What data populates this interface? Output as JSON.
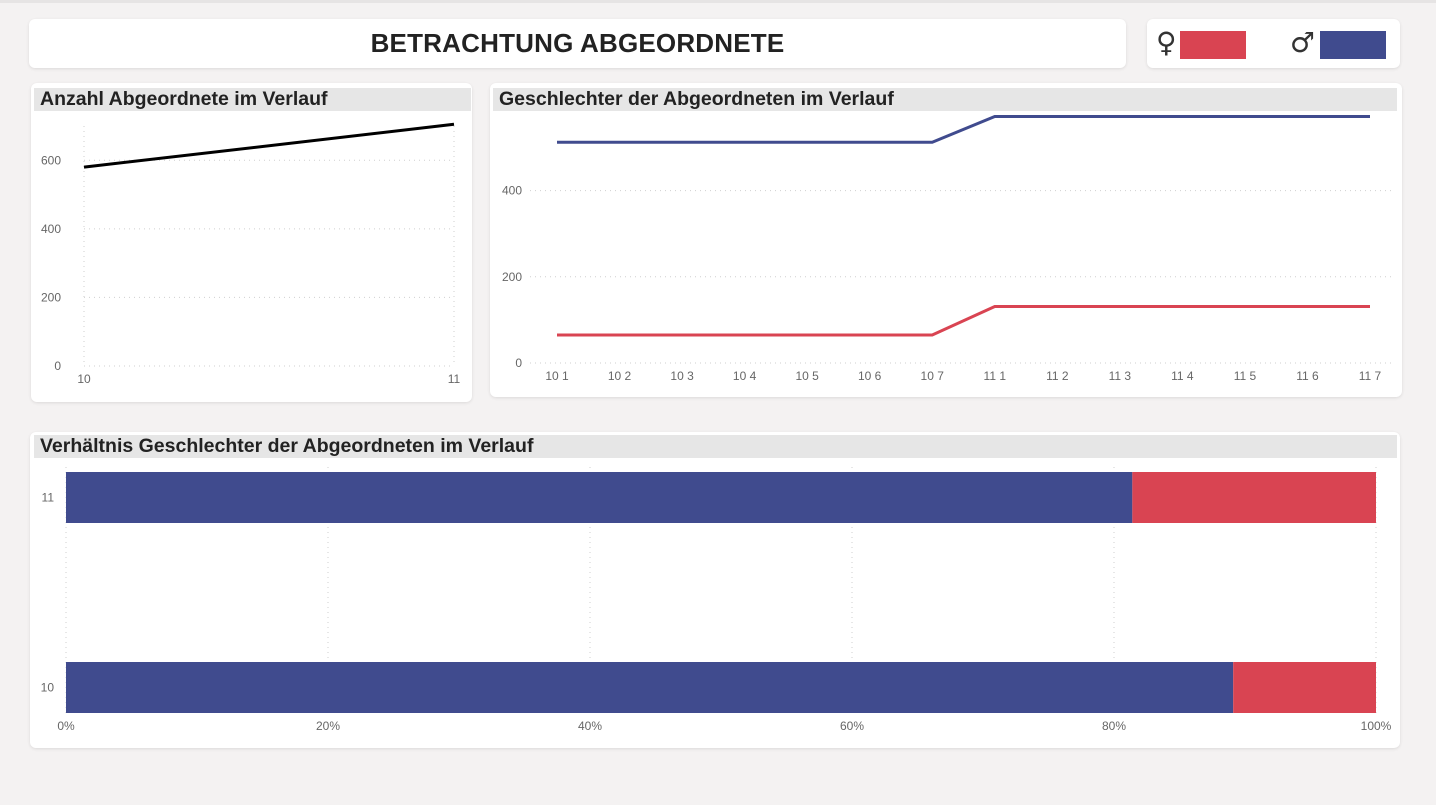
{
  "title": "BETRACHTUNG ABGEORDNETE",
  "legend": {
    "female_icon": "female-symbol-icon",
    "female_symbol": "♀",
    "female_color": "#d94452",
    "male_icon": "male-symbol-icon",
    "male_symbol": "♂",
    "male_color": "#404b8e"
  },
  "chart_data": [
    {
      "type": "line",
      "title": "Anzahl Abgeordnete im Verlauf",
      "x": [
        "10",
        "11"
      ],
      "series": [
        {
          "values": [
            580,
            705
          ],
          "color": "#000000"
        }
      ],
      "y_ticks": [
        "0",
        "200",
        "400",
        "600"
      ],
      "ylim": [
        0,
        700
      ],
      "grid": true
    },
    {
      "type": "line",
      "title": "Geschlechter der Abgeordneten im Verlauf",
      "x": [
        "10 1",
        "10 2",
        "10 3",
        "10 4",
        "10 5",
        "10 6",
        "10 7",
        "11 1",
        "11 2",
        "11 3",
        "11 4",
        "11 5",
        "11 6",
        "11 7"
      ],
      "series": [
        {
          "values": [
            512,
            512,
            512,
            512,
            512,
            512,
            512,
            572,
            572,
            572,
            572,
            572,
            572,
            572
          ],
          "color": "#404b8e"
        },
        {
          "values": [
            65,
            65,
            65,
            65,
            65,
            65,
            65,
            131,
            131,
            131,
            131,
            131,
            131,
            131
          ],
          "color": "#d94452"
        }
      ],
      "y_ticks": [
        "0",
        "200",
        "400"
      ],
      "ylim": [
        0,
        580
      ],
      "grid": true
    },
    {
      "type": "bar",
      "orientation": "horizontal",
      "stacked": "percent",
      "title": "Verhältnis Geschlechter der Abgeordneten im Verlauf",
      "categories": [
        "11",
        "10"
      ],
      "series": [
        {
          "values": [
            81.4,
            89.1
          ],
          "color": "#404b8e"
        },
        {
          "values": [
            18.6,
            10.9
          ],
          "color": "#d94452"
        }
      ],
      "x_ticks": [
        "0%",
        "20%",
        "40%",
        "60%",
        "80%",
        "100%"
      ],
      "xlim": [
        0,
        100
      ],
      "grid": true
    }
  ]
}
